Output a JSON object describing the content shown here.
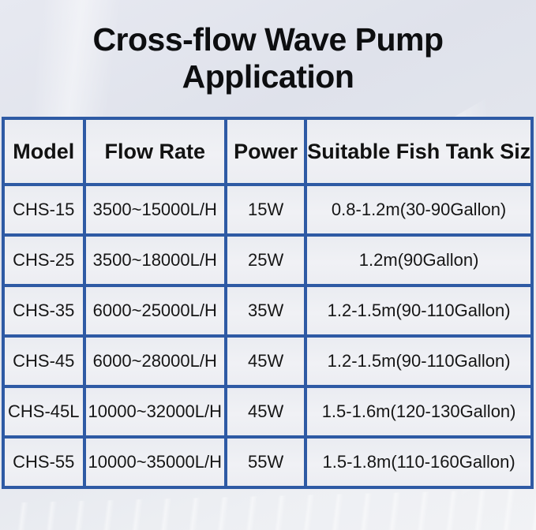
{
  "title": "Cross-flow Wave Pump Application",
  "table": {
    "headers": [
      "Model",
      "Flow Rate",
      "Power",
      "Suitable Fish Tank Size"
    ],
    "rows": [
      {
        "model": "CHS-15",
        "flow_rate": "3500~15000L/H",
        "power": "15W",
        "tank_size": "0.8-1.2m(30-90Gallon)"
      },
      {
        "model": "CHS-25",
        "flow_rate": "3500~18000L/H",
        "power": "25W",
        "tank_size": "1.2m(90Gallon)"
      },
      {
        "model": "CHS-35",
        "flow_rate": "6000~25000L/H",
        "power": "35W",
        "tank_size": "1.2-1.5m(90-110Gallon)"
      },
      {
        "model": "CHS-45",
        "flow_rate": "6000~28000L/H",
        "power": "45W",
        "tank_size": "1.2-1.5m(90-110Gallon)"
      },
      {
        "model": "CHS-45L",
        "flow_rate": "10000~32000L/H",
        "power": "45W",
        "tank_size": "1.5-1.6m(120-130Gallon)"
      },
      {
        "model": "CHS-55",
        "flow_rate": "10000~35000L/H",
        "power": "55W",
        "tank_size": "1.5-1.8m(110-160Gallon)"
      }
    ]
  },
  "colors": {
    "border_blue": "#2e5aa4",
    "outer_border_blue": "#26508f",
    "cell_background": "#edeff3",
    "page_background_top": "#e2e5ee",
    "page_background_bottom": "#f1f2f5",
    "title_text": "#0d0e10",
    "cell_text": "#161616"
  }
}
